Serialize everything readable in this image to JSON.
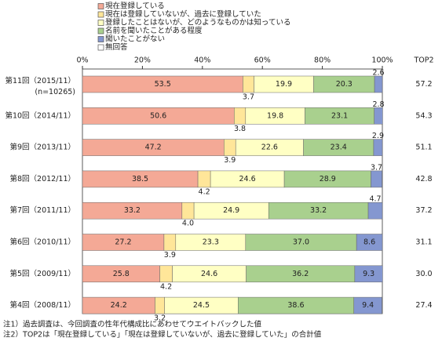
{
  "chart_data": {
    "type": "stacked-bar-horizontal",
    "categories": [
      "第11回（2015/11）",
      "第10回（2014/11）",
      "第9回（2013/11）",
      "第8回（2012/11）",
      "第7回（2011/11）",
      "第6回（2010/11）",
      "第5回（2009/11）",
      "第4回（2008/11）"
    ],
    "sample_note": "(n=10265)",
    "xlim": [
      0,
      100
    ],
    "xticks": [
      {
        "value": 0,
        "label": "0%"
      },
      {
        "value": 20,
        "label": "20%"
      },
      {
        "value": 40,
        "label": "40%"
      },
      {
        "value": 60,
        "label": "60%"
      },
      {
        "value": 80,
        "label": "80%"
      },
      {
        "value": 100,
        "label": "100%"
      }
    ],
    "series": [
      {
        "name": "現在登録している",
        "color": "#f4a996",
        "values": [
          53.5,
          50.6,
          47.2,
          38.5,
          33.2,
          27.2,
          25.8,
          24.2
        ]
      },
      {
        "name": "現在は登録していないが、過去に登録していた",
        "color": "#ffe699",
        "values": [
          3.7,
          3.8,
          3.9,
          4.2,
          4.0,
          3.9,
          4.2,
          3.2
        ],
        "value_labels": [
          "3.7",
          "3.8",
          "3.9",
          "4.2",
          "4.0",
          "3.9",
          "4.2",
          "3.2"
        ]
      },
      {
        "name": "登録したことはないが、どのようなものかは知っている",
        "color": "#ffffc4",
        "values": [
          19.9,
          19.8,
          22.6,
          24.6,
          24.9,
          23.3,
          24.6,
          24.5
        ]
      },
      {
        "name": "名前を聞いたことがある程度",
        "color": "#a9d08e",
        "values": [
          20.3,
          23.1,
          23.4,
          28.9,
          33.2,
          37.0,
          36.2,
          38.6
        ],
        "value_labels": [
          "20.3",
          "23.1",
          "23.4",
          "28.9",
          "33.2",
          "37.0",
          "36.2",
          "38.6"
        ]
      },
      {
        "name": "聞いたことがない",
        "color": "#8497d0",
        "values": [
          2.6,
          2.8,
          2.9,
          3.7,
          4.7,
          8.6,
          9.3,
          9.4
        ]
      },
      {
        "name": "無回答",
        "color": "#ffffff",
        "values": [
          0,
          0,
          0,
          0,
          0,
          0,
          0,
          0.1
        ]
      }
    ],
    "top2": {
      "label": "TOP2",
      "values": [
        57.2,
        54.3,
        51.1,
        42.8,
        37.2,
        31.1,
        30.0,
        27.4
      ],
      "value_labels": [
        "57.2",
        "54.3",
        "51.1",
        "42.8",
        "37.2",
        "31.1",
        "30.0",
        "27.4"
      ]
    },
    "notes": [
      "注1）過去調査は、今回調査の性年代構成比にあわせてウエイトバックした値",
      "注2）TOP2は「現在登録している」「現在は登録していないが、過去に登録していた」の合計値"
    ]
  }
}
